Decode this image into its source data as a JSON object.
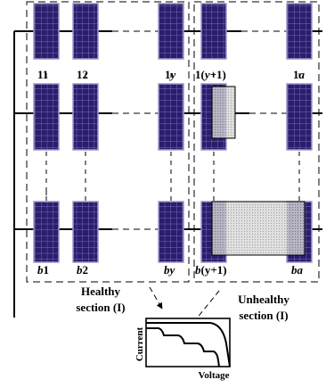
{
  "colors": {
    "panel_fill": "#2a1d6b",
    "panel_grid": "#7b6fc4",
    "panel_border": "#9f98c9",
    "wire": "#000000",
    "shade_fill": "#bdbdbd"
  },
  "panel_labels": {
    "row1": [
      {
        "pre": "1",
        "ital": "",
        "post": "1"
      },
      {
        "pre": "1",
        "ital": "",
        "post": "2"
      },
      {
        "pre": "1",
        "ital": "y",
        "post": ""
      },
      {
        "pre": "1(",
        "ital": "y",
        "post": "+1)"
      },
      {
        "pre": "1",
        "ital": "a",
        "post": ""
      }
    ],
    "rowb": [
      {
        "pre": "",
        "ital": "b",
        "post": "1"
      },
      {
        "pre": "",
        "ital": "b",
        "post": "2"
      },
      {
        "pre": "",
        "ital": "by",
        "post": ""
      },
      {
        "pre": "",
        "ital": "b",
        "post": "(y+1)"
      },
      {
        "pre": "",
        "ital": "ba",
        "post": ""
      }
    ]
  },
  "healthy_label": [
    "Healthy",
    "section (I)"
  ],
  "unhealthy_label": [
    "Unhealthy",
    "section (I)"
  ],
  "iv_axes": {
    "y": "Current",
    "x": "Voltage"
  },
  "icons": {
    "panel": "pv-module-icon",
    "shade": "shading-pattern-icon",
    "arrow": "callout-arrow-icon"
  }
}
